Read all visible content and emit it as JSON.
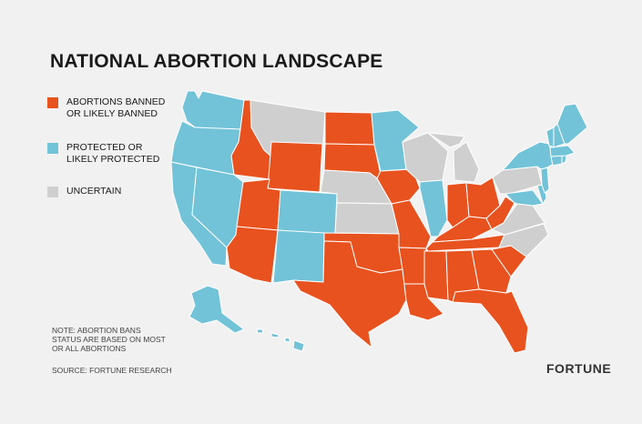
{
  "title": "NATIONAL ABORTION LANDSCAPE",
  "colors": {
    "banned": "#e8521f",
    "protected": "#72c3d8",
    "uncertain": "#cfcfcf",
    "background": "#f1f1f1"
  },
  "legend": [
    {
      "category": "banned",
      "label": "ABORTIONS BANNED\nOR LIKELY BANNED"
    },
    {
      "category": "protected",
      "label": "PROTECTED OR\nLIKELY PROTECTED"
    },
    {
      "category": "uncertain",
      "label": "UNCERTAIN"
    }
  ],
  "note": "NOTE: ABORTION BANS STATUS ARE BASED ON MOST OR ALL ABORTIONS",
  "source": "SOURCE: FORTUNE RESEARCH",
  "brand": "FORTUNE",
  "states": {
    "WA": "protected",
    "OR": "protected",
    "CA": "protected",
    "NV": "protected",
    "ID": "banned",
    "MT": "uncertain",
    "WY": "banned",
    "UT": "banned",
    "AZ": "banned",
    "CO": "protected",
    "NM": "protected",
    "ND": "banned",
    "SD": "banned",
    "NE": "uncertain",
    "KS": "uncertain",
    "OK": "banned",
    "TX": "banned",
    "MN": "protected",
    "IA": "banned",
    "MO": "banned",
    "AR": "banned",
    "LA": "banned",
    "WI": "uncertain",
    "IL": "protected",
    "MI": "uncertain",
    "IN": "banned",
    "OH": "banned",
    "KY": "banned",
    "TN": "banned",
    "MS": "banned",
    "AL": "banned",
    "GA": "banned",
    "FL": "banned",
    "SC": "banned",
    "NC": "uncertain",
    "VA": "uncertain",
    "WV": "banned",
    "PA": "uncertain",
    "NY": "protected",
    "NJ": "protected",
    "DE": "protected",
    "MD": "protected",
    "CT": "protected",
    "RI": "protected",
    "MA": "protected",
    "VT": "protected",
    "NH": "protected",
    "ME": "protected",
    "AK": "protected",
    "HI": "protected"
  }
}
